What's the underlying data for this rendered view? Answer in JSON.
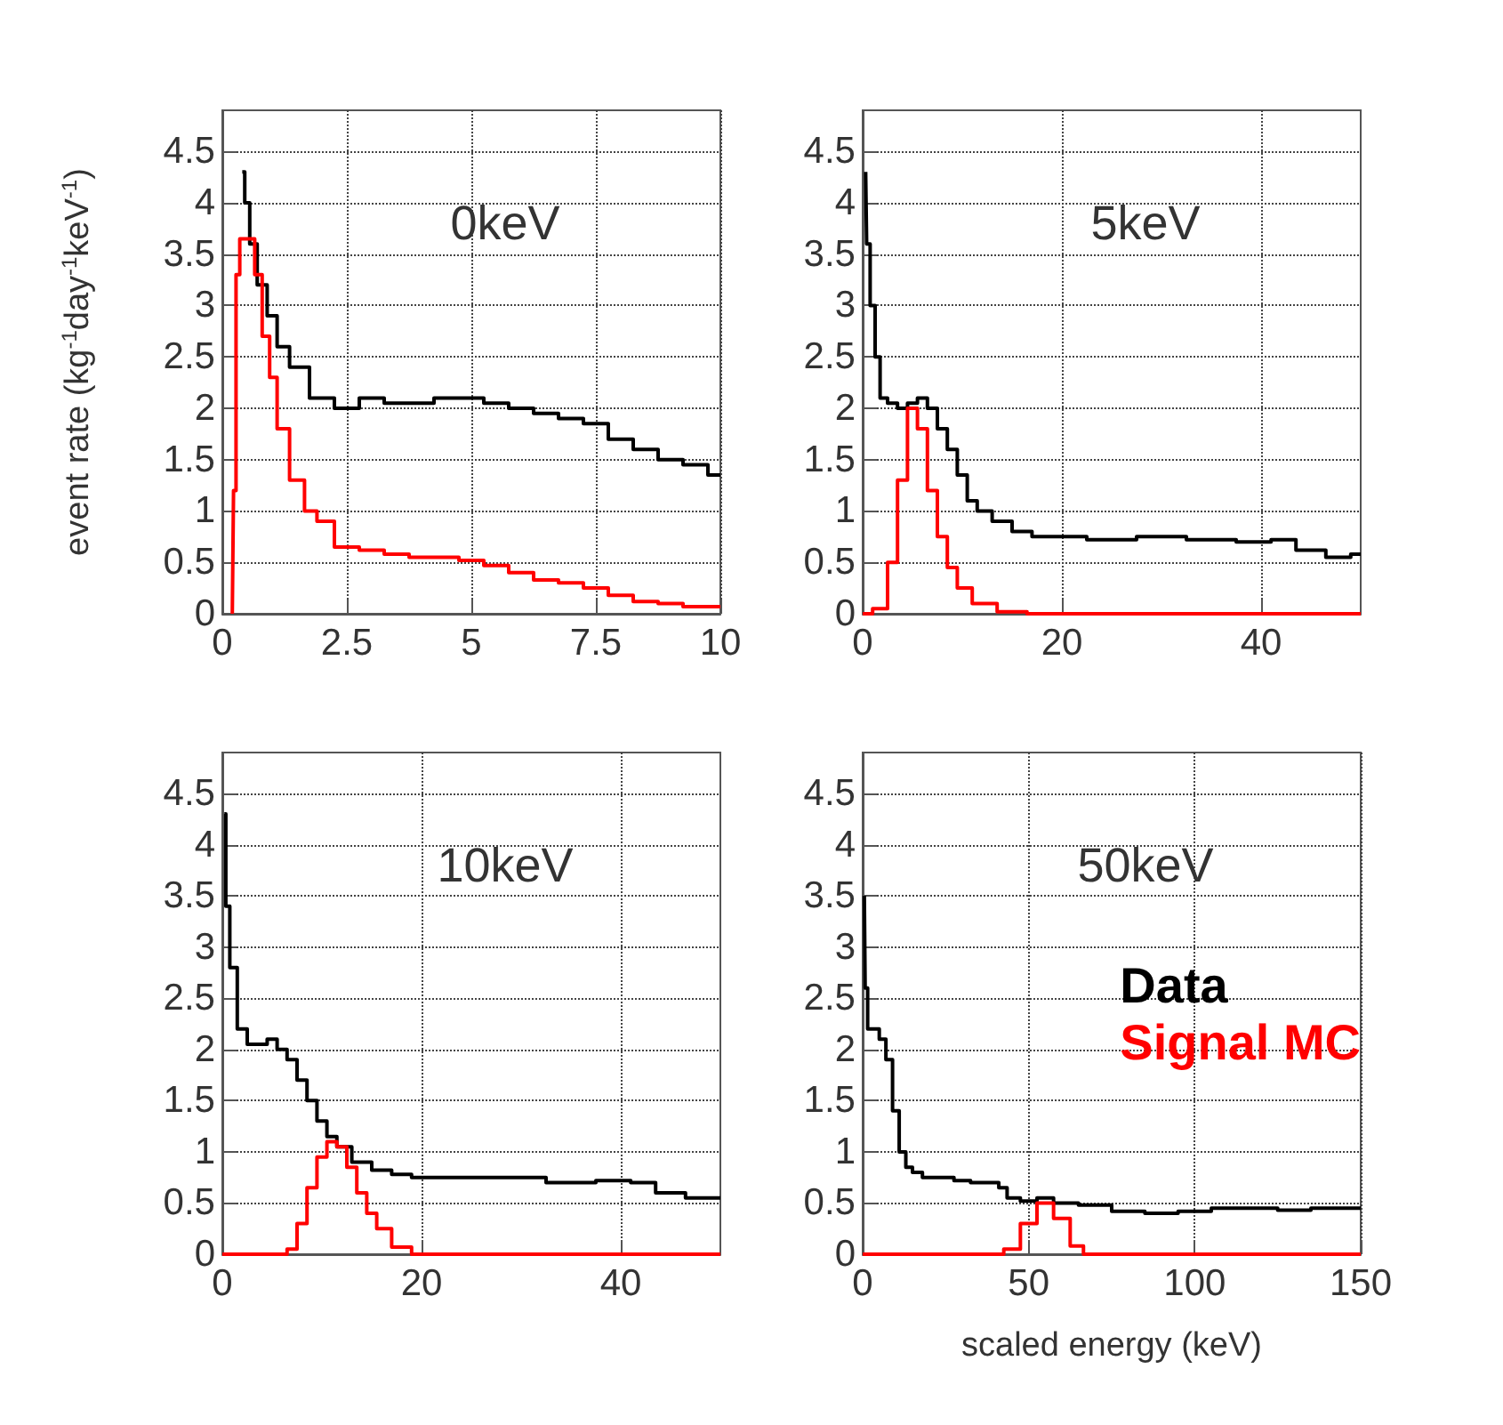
{
  "chart_data": [
    {
      "type": "step",
      "title": "0keV",
      "ylabel": "event rate (kg$^{-1}$day$^{-1}$keV$^{-1}$)",
      "xlim": [
        0,
        10
      ],
      "xticks": [
        0,
        2.5,
        5,
        7.5,
        10
      ],
      "ylim": [
        0,
        4.9
      ],
      "yticks": [
        0,
        0.5,
        1,
        1.5,
        2,
        2.5,
        3,
        3.5,
        4,
        4.5
      ],
      "grid": true,
      "legend": false,
      "series": [
        {
          "color": "#000000",
          "x": [
            0.4,
            0.5,
            0.6,
            0.8,
            1.0,
            1.2,
            1.5,
            2.0,
            2.5,
            3.0,
            3.5,
            4.0,
            4.5,
            5.0,
            5.5,
            6.0,
            6.5,
            7.0,
            7.5,
            8.0,
            8.5,
            9.0,
            9.5,
            10
          ],
          "values": [
            4.3,
            4.0,
            3.6,
            3.2,
            2.9,
            2.6,
            2.4,
            2.1,
            2.0,
            2.1,
            2.05,
            2.05,
            2.1,
            2.1,
            2.05,
            2.0,
            1.95,
            1.9,
            1.85,
            1.7,
            1.6,
            1.5,
            1.45,
            1.35
          ]
        },
        {
          "color": "#ff0000",
          "x": [
            0.2,
            0.25,
            0.3,
            0.4,
            0.6,
            0.7,
            0.9,
            1.0,
            1.2,
            1.5,
            1.8,
            2.0,
            2.5,
            3.0,
            3.5,
            4.0,
            4.5,
            5.0,
            5.5,
            6.0,
            6.5,
            7.0,
            7.5,
            8.0,
            8.5,
            9.0,
            9.5,
            10
          ],
          "values": [
            0,
            1.2,
            3.3,
            3.65,
            3.65,
            3.3,
            2.7,
            2.3,
            1.8,
            1.3,
            1.0,
            0.9,
            0.65,
            0.62,
            0.58,
            0.55,
            0.55,
            0.52,
            0.47,
            0.4,
            0.33,
            0.3,
            0.25,
            0.18,
            0.12,
            0.1,
            0.07,
            0.07
          ]
        }
      ]
    },
    {
      "type": "step",
      "title": "5keV",
      "xlim": [
        0,
        50
      ],
      "xticks": [
        0,
        20,
        40
      ],
      "ylim": [
        0,
        4.9
      ],
      "yticks": [
        0,
        0.5,
        1,
        1.5,
        2,
        2.5,
        3,
        3.5,
        4,
        4.5
      ],
      "grid": true,
      "legend": false,
      "series": [
        {
          "color": "#000000",
          "x": [
            0.3,
            0.5,
            1,
            1.5,
            2,
            3,
            4,
            5,
            6,
            7,
            8,
            9,
            10,
            11,
            12,
            14,
            16,
            18,
            20,
            25,
            30,
            35,
            40,
            42,
            45,
            48,
            50
          ],
          "values": [
            4.3,
            3.6,
            3.0,
            2.5,
            2.1,
            2.05,
            2.0,
            2.05,
            2.1,
            2.0,
            1.8,
            1.6,
            1.35,
            1.1,
            1.0,
            0.9,
            0.8,
            0.75,
            0.75,
            0.72,
            0.75,
            0.72,
            0.7,
            0.72,
            0.62,
            0.55,
            0.58
          ]
        },
        {
          "color": "#ff0000",
          "x": [
            0,
            2,
            3,
            4,
            5,
            6,
            7,
            8,
            9,
            10,
            12,
            15,
            18,
            50
          ],
          "values": [
            0,
            0.05,
            0.5,
            1.3,
            2.0,
            1.8,
            1.2,
            0.75,
            0.45,
            0.25,
            0.1,
            0.02,
            0,
            0
          ]
        }
      ]
    },
    {
      "type": "step",
      "title": "10keV",
      "xlim": [
        0,
        50
      ],
      "xticks": [
        0,
        20,
        40
      ],
      "ylim": [
        0,
        4.9
      ],
      "yticks": [
        0,
        0.5,
        1,
        1.5,
        2,
        2.5,
        3,
        3.5,
        4,
        4.5
      ],
      "grid": true,
      "legend": false,
      "series": [
        {
          "color": "#000000",
          "x": [
            0.2,
            0.5,
            1,
            2,
            3,
            4,
            5,
            6,
            7,
            8,
            9,
            10,
            11,
            12,
            14,
            16,
            18,
            20,
            25,
            30,
            35,
            40,
            42,
            45,
            48,
            50
          ],
          "values": [
            4.3,
            3.4,
            2.8,
            2.2,
            2.05,
            2.05,
            2.1,
            2.0,
            1.9,
            1.7,
            1.5,
            1.3,
            1.15,
            1.05,
            0.9,
            0.82,
            0.78,
            0.75,
            0.75,
            0.75,
            0.7,
            0.72,
            0.7,
            0.6,
            0.55,
            0.55
          ]
        },
        {
          "color": "#ff0000",
          "x": [
            0,
            6,
            7,
            8,
            9,
            10,
            11,
            12,
            13,
            14,
            15,
            16,
            18,
            20,
            50
          ],
          "values": [
            0,
            0,
            0.05,
            0.3,
            0.65,
            0.95,
            1.1,
            1.05,
            0.85,
            0.6,
            0.4,
            0.25,
            0.07,
            0,
            0
          ]
        }
      ]
    },
    {
      "type": "step",
      "title": "50keV",
      "xlabel": "scaled energy (keV)",
      "xlim": [
        0,
        150
      ],
      "xticks": [
        0,
        50,
        100,
        150
      ],
      "ylim": [
        0,
        4.9
      ],
      "yticks": [
        0,
        0.5,
        1,
        1.5,
        2,
        2.5,
        3,
        3.5,
        4,
        4.5
      ],
      "grid": true,
      "legend": "right",
      "series": [
        {
          "name": "Data",
          "color": "#000000",
          "x": [
            0.5,
            1,
            2,
            4,
            6,
            8,
            10,
            12,
            14,
            16,
            20,
            25,
            30,
            35,
            40,
            42,
            45,
            50,
            55,
            60,
            70,
            80,
            90,
            100,
            110,
            120,
            130,
            140,
            150
          ],
          "values": [
            3.5,
            2.6,
            2.2,
            2.2,
            2.1,
            1.9,
            1.4,
            1.0,
            0.85,
            0.8,
            0.75,
            0.75,
            0.72,
            0.7,
            0.7,
            0.65,
            0.55,
            0.52,
            0.55,
            0.5,
            0.48,
            0.42,
            0.4,
            0.42,
            0.45,
            0.45,
            0.43,
            0.45,
            0.45
          ]
        },
        {
          "name": "Signal MC",
          "color": "#ff0000",
          "x": [
            0,
            40,
            45,
            50,
            55,
            60,
            65,
            68,
            150
          ],
          "values": [
            0,
            0,
            0.05,
            0.3,
            0.5,
            0.35,
            0.08,
            0,
            0
          ]
        }
      ]
    }
  ]
}
